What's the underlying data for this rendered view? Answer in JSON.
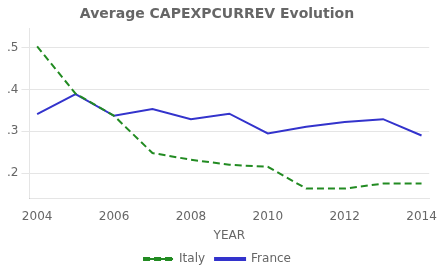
{
  "chart_data": {
    "type": "line",
    "title": "Average CAPEXPCURREV Evolution",
    "xlabel": "YEAR",
    "x": [
      2004,
      2005,
      2006,
      2007,
      2008,
      2009,
      2010,
      2011,
      2012,
      2013,
      2014
    ],
    "series": [
      {
        "name": "Italy",
        "color": "#228B22",
        "line_style": "dashed",
        "values": [
          0.503,
          0.39,
          0.337,
          0.248,
          0.232,
          0.22,
          0.215,
          0.163,
          0.163,
          0.175,
          0.175
        ]
      },
      {
        "name": "France",
        "color": "#3333cc",
        "line_style": "solid",
        "values": [
          0.341,
          0.389,
          0.337,
          0.353,
          0.329,
          0.342,
          0.295,
          0.311,
          0.322,
          0.329,
          0.29
        ]
      }
    ],
    "xlim": [
      2003.8,
      2014.2
    ],
    "xticks": [
      2004,
      2006,
      2008,
      2010,
      2012,
      2014
    ],
    "ylim": [
      0.14,
      0.545
    ],
    "yticks": [
      {
        "value": 0.2,
        "label": ".2"
      },
      {
        "value": 0.3,
        "label": ".3"
      },
      {
        "value": 0.4,
        "label": ".4"
      },
      {
        "value": 0.5,
        "label": ".5"
      }
    ],
    "grid": true,
    "legend": "bottom"
  }
}
